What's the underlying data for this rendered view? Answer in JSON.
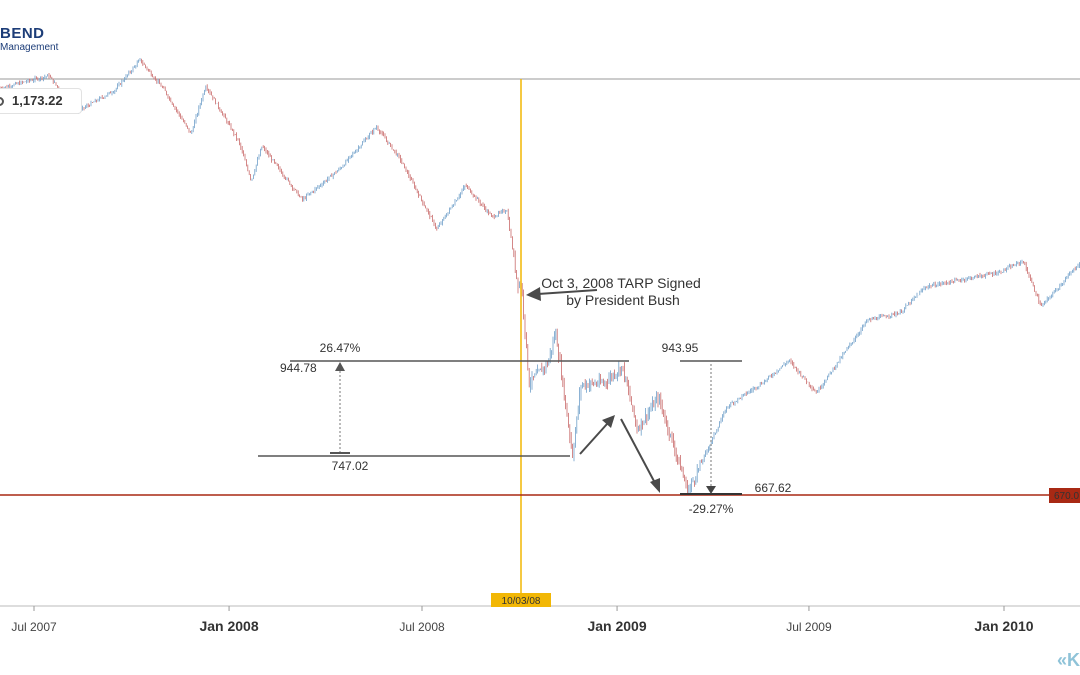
{
  "logo": {
    "line1": "BEND",
    "line2": "Management"
  },
  "price_readout": "1,173.22",
  "chart_data": {
    "type": "line",
    "x_ticks": [
      "Jul 2007",
      "Jan 2008",
      "Jul 2008",
      "Jan 2009",
      "Jul 2009",
      "Jan 2010"
    ],
    "bold_ticks": [
      "Jan 2008",
      "Jan 2009",
      "Jan 2010"
    ],
    "ylim": [
      560,
      1620
    ],
    "series": [
      {
        "values": [
          [
            "2007-06-01",
            1505
          ],
          [
            "2007-07-15",
            1530
          ],
          [
            "2007-08-10",
            1455
          ],
          [
            "2007-09-15",
            1500
          ],
          [
            "2007-10-09",
            1562
          ],
          [
            "2007-11-01",
            1500
          ],
          [
            "2007-11-26",
            1410
          ],
          [
            "2007-12-10",
            1510
          ],
          [
            "2008-01-10",
            1395
          ],
          [
            "2008-01-22",
            1315
          ],
          [
            "2008-02-01",
            1385
          ],
          [
            "2008-03-10",
            1275
          ],
          [
            "2008-04-15",
            1340
          ],
          [
            "2008-05-19",
            1425
          ],
          [
            "2008-06-10",
            1360
          ],
          [
            "2008-07-15",
            1215
          ],
          [
            "2008-08-11",
            1305
          ],
          [
            "2008-09-05",
            1240
          ],
          [
            "2008-09-19",
            1255
          ],
          [
            "2008-09-29",
            1106
          ],
          [
            "2008-10-03",
            1099
          ],
          [
            "2008-10-10",
            899
          ],
          [
            "2008-10-28",
            941
          ],
          [
            "2008-11-04",
            1005
          ],
          [
            "2008-11-20",
            752
          ],
          [
            "2008-11-28",
            896
          ],
          [
            "2008-12-20",
            900
          ],
          [
            "2009-01-06",
            934
          ],
          [
            "2009-01-20",
            805
          ],
          [
            "2009-02-09",
            870
          ],
          [
            "2009-03-09",
            677
          ],
          [
            "2009-04-15",
            852
          ],
          [
            "2009-05-20",
            903
          ],
          [
            "2009-06-12",
            946
          ],
          [
            "2009-07-08",
            880
          ],
          [
            "2009-08-25",
            1028
          ],
          [
            "2009-09-25",
            1044
          ],
          [
            "2009-10-19",
            1097
          ],
          [
            "2009-11-18",
            1110
          ],
          [
            "2009-12-28",
            1127
          ],
          [
            "2010-01-19",
            1150
          ],
          [
            "2010-02-05",
            1056
          ],
          [
            "2010-03-15",
            1150
          ],
          [
            "2010-03-31",
            1173
          ]
        ]
      }
    ],
    "marker": {
      "date": "10/03/08",
      "color": "#f2b705"
    },
    "support": {
      "value": 670,
      "label": "670.0",
      "color": "#a82914"
    },
    "annotations": {
      "tarp": [
        "Oct 3, 2008 TARP Signed",
        "by President Bush"
      ],
      "rally": {
        "high": "944.78",
        "low": "747.02",
        "pct": "26.47%"
      },
      "decline": {
        "high": "943.95",
        "low": "667.62",
        "pct": "-29.27%"
      }
    }
  },
  "colors": {
    "up": "#6f9fc9",
    "down": "#c96b6b",
    "annotation": "#4a4a4a"
  }
}
